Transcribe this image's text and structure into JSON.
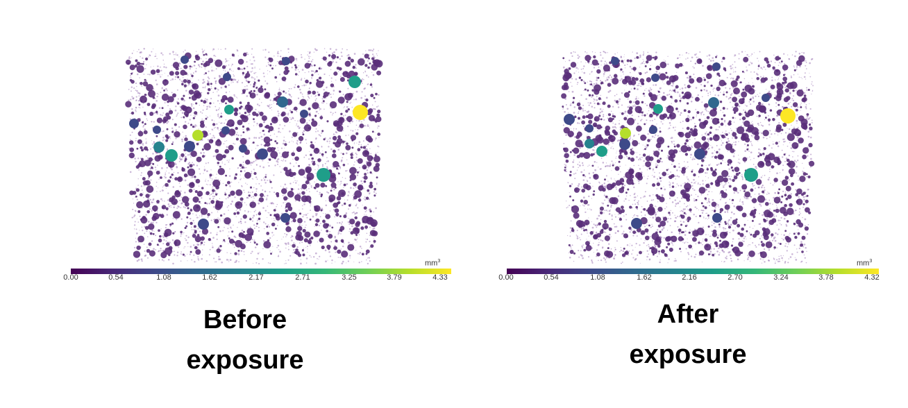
{
  "panels": [
    {
      "id": "before",
      "caption_line1": "Before",
      "caption_line2": "exposure",
      "colorbar": {
        "unit_base": "mm",
        "unit_exp": "3",
        "ticks": [
          "0.00",
          "0.54",
          "1.08",
          "1.62",
          "2.17",
          "2.71",
          "3.25",
          "3.79",
          "4.33"
        ]
      }
    },
    {
      "id": "after",
      "caption_line1": "After",
      "caption_line2": "exposure",
      "colorbar": {
        "unit_base": "mm",
        "unit_exp": "3",
        "ticks": [
          "0.00",
          "0.54",
          "1.08",
          "1.62",
          "2.16",
          "2.70",
          "3.24",
          "3.78",
          "4.32"
        ]
      }
    }
  ],
  "colors": {
    "viridis": [
      "#440154",
      "#482878",
      "#3e4a89",
      "#31688e",
      "#26828e",
      "#1f9e89",
      "#35b779",
      "#6ece58",
      "#b5de2b",
      "#fde725"
    ],
    "pore_small": "#5a2f7a",
    "pore_haze": "#8b5fa8"
  }
}
